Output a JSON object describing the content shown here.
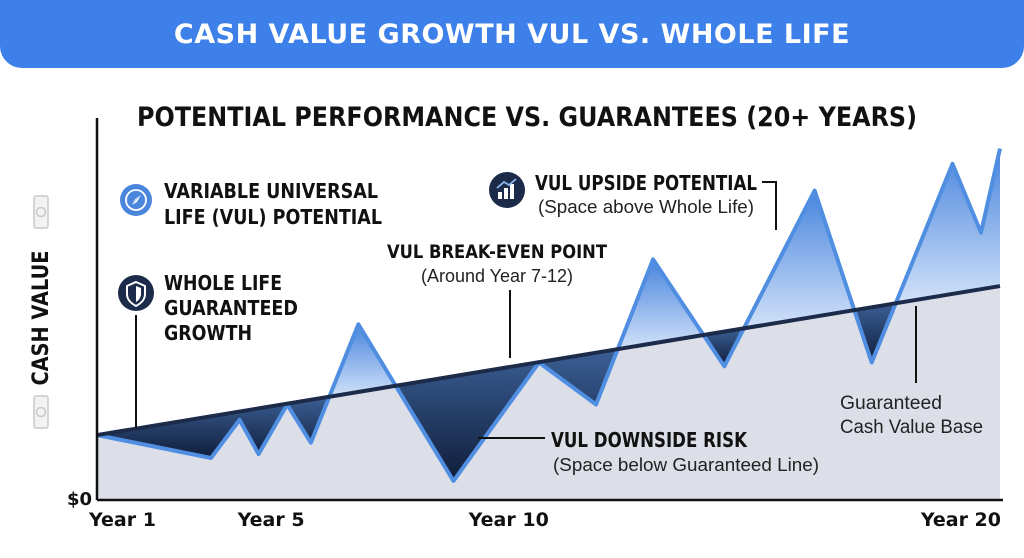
{
  "header": {
    "title": "CASH VALUE GROWTH VUL VS. WHOLE LIFE"
  },
  "chart_data": {
    "type": "area",
    "title": "POTENTIAL PERFORMANCE VS. GUARANTEES (20+ YEARS)",
    "ylabel": "CASH VALUE",
    "y_zero_label": "$0",
    "x_range": [
      1,
      20
    ],
    "x_ticks": [
      {
        "x": 1,
        "label": "Year 1"
      },
      {
        "x": 5,
        "label": "Year 5"
      },
      {
        "x": 10,
        "label": "Year 10"
      },
      {
        "x": 20,
        "label": "Year 20"
      }
    ],
    "ylim": [
      0,
      100
    ],
    "series": [
      {
        "key": "guaranteed",
        "name": "WHOLE LIFE GUARANTEED GROWTH",
        "points": [
          [
            1,
            17
          ],
          [
            20,
            56
          ]
        ]
      },
      {
        "key": "vul",
        "name": "VARIABLE UNIVERSAL LIFE (VUL) POTENTIAL",
        "points": [
          [
            1,
            17
          ],
          [
            3.4,
            11
          ],
          [
            4.0,
            21
          ],
          [
            4.4,
            12
          ],
          [
            5.0,
            25
          ],
          [
            5.5,
            15
          ],
          [
            6.5,
            46
          ],
          [
            8.5,
            5
          ],
          [
            10.3,
            36
          ],
          [
            11.5,
            25
          ],
          [
            12.7,
            63
          ],
          [
            14.2,
            35
          ],
          [
            16.1,
            81
          ],
          [
            17.3,
            36
          ],
          [
            19.0,
            88
          ],
          [
            19.6,
            70
          ],
          [
            20.0,
            92
          ]
        ]
      }
    ],
    "legend": [
      {
        "icon": "compass-icon",
        "text": [
          "VARIABLE UNIVERSAL",
          "LIFE (VUL) POTENTIAL"
        ]
      },
      {
        "icon": "shield-icon",
        "text": [
          "WHOLE LIFE",
          "GUARANTEED",
          "GROWTH"
        ]
      }
    ],
    "annotations": {
      "upside": {
        "icon": "growth-chart-icon",
        "title": "VUL UPSIDE POTENTIAL",
        "subtitle": "(Space above Whole Life)"
      },
      "breakeven": {
        "title": "VUL BREAK-EVEN POINT",
        "subtitle": "(Around Year 7-12)"
      },
      "downside": {
        "title": "VUL DOWNSIDE RISK",
        "subtitle": "(Space below Guaranteed Line)"
      },
      "base": {
        "lines": [
          "Guaranteed",
          "Cash Value Base"
        ]
      }
    },
    "colors": {
      "header": "#3d80ea",
      "guaranteed_line": "#1c2b4a",
      "guaranteed_fill": "#dcdfe8",
      "vul_line": "#4f8ee0",
      "upside_fill": "#5b95e6",
      "downside_fill": "#1b2d52",
      "icon_blue": "#4a86db",
      "icon_navy": "#1c2b4a"
    }
  }
}
